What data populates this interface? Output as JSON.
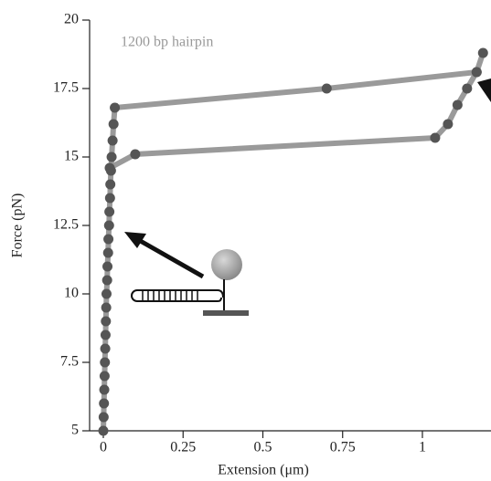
{
  "chart_data": {
    "type": "line",
    "xlabel": "Extension (μm)",
    "ylabel": "Force (pN)",
    "annotation": "1200 bp hairpin",
    "x": [
      0,
      0.001,
      0.002,
      0.003,
      0.004,
      0.005,
      0.006,
      0.007,
      0.008,
      0.009,
      0.01,
      0.012,
      0.013,
      0.015,
      0.016,
      0.018,
      0.019,
      0.021,
      0.022,
      0.024,
      0.026,
      0.029,
      0.032,
      0.036,
      0.7,
      1.17,
      1.19,
      1.17,
      1.14,
      1.11,
      1.08,
      1.04,
      0.1,
      0.02
    ],
    "values": [
      5,
      5.5,
      6,
      6.5,
      7,
      7.5,
      8,
      8.5,
      9,
      9.5,
      10,
      10.5,
      11,
      11.5,
      12,
      12.5,
      13,
      13.5,
      14,
      14.5,
      15,
      15.6,
      16.2,
      16.8,
      17.5,
      18.1,
      18.8,
      18.1,
      17.5,
      16.9,
      16.2,
      15.7,
      15.1,
      14.6
    ],
    "color": "#9a9a9a",
    "marker_color": "#555555",
    "xlim": [
      -0.043,
      1.215
    ],
    "ylim": [
      5,
      20
    ],
    "xticks": [
      0,
      0.25,
      0.5,
      0.75,
      1
    ],
    "yticks": [
      5,
      7.5,
      10,
      12.5,
      15,
      17.5,
      20
    ]
  }
}
